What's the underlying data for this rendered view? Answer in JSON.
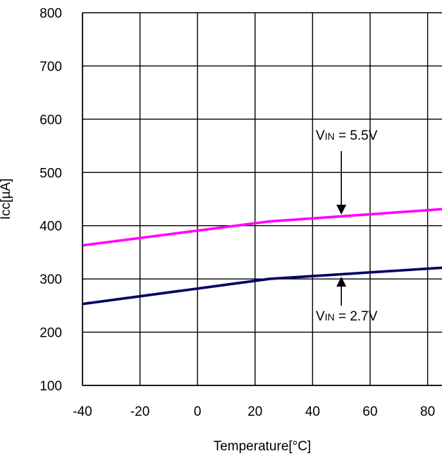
{
  "chart_data": {
    "type": "line",
    "xlabel": "Temperature[°C]",
    "ylabel": "Icc[µA]",
    "xlim": [
      -40,
      85
    ],
    "ylim": [
      100,
      800
    ],
    "xticks": [
      -40,
      -20,
      0,
      20,
      40,
      60,
      80
    ],
    "yticks": [
      100,
      200,
      300,
      400,
      500,
      600,
      700,
      800
    ],
    "grid": true,
    "series": [
      {
        "name": "VIN = 5.5V",
        "color": "#ff00ff",
        "x": [
          -40,
          25,
          85
        ],
        "y": [
          363,
          408,
          431
        ]
      },
      {
        "name": "VIN = 2.7V",
        "color": "#000066",
        "x": [
          -40,
          25,
          85
        ],
        "y": [
          253,
          300,
          321
        ]
      }
    ],
    "annotations": [
      {
        "main": "V",
        "sub": "IN",
        "rest": " = 5.5V",
        "arrow_x": 50,
        "arrow_to": 418,
        "direction": "down"
      },
      {
        "main": "V",
        "sub": "IN",
        "rest": " = 2.7V",
        "arrow_x": 50,
        "arrow_to": 309,
        "direction": "up"
      }
    ]
  }
}
